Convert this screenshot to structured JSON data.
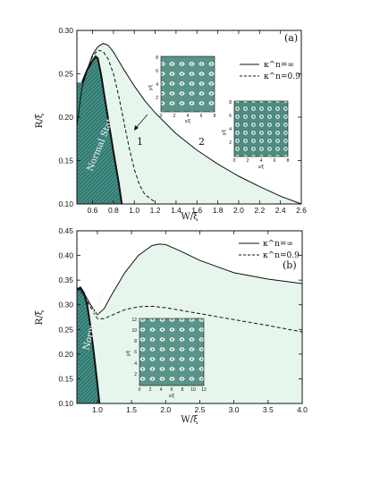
{
  "colors": {
    "region_fill": "#e6f6ec",
    "normal_fill": "#2f7a72",
    "inset_bg": "#4f8b80",
    "inset_light": "#d7ece6",
    "axis": "#111111"
  },
  "chart_data": [
    {
      "id": "a",
      "type": "line",
      "panel_label": "(a)",
      "xlabel": "W/ξ",
      "ylabel": "R/ξ",
      "xlim": [
        0.45,
        2.6
      ],
      "ylim": [
        0.1,
        0.3
      ],
      "x_ticks": [
        0.6,
        0.8,
        1.0,
        1.2,
        1.4,
        1.6,
        1.8,
        2.0,
        2.2,
        2.4,
        2.6
      ],
      "x_tick_labels": [
        "0.6",
        "0.8",
        "1.0",
        "1.2",
        "1.4",
        "1.6",
        "1.8",
        "2.0",
        "2.2",
        "2.4",
        "2.6"
      ],
      "y_ticks": [
        0.1,
        0.15,
        0.2,
        0.25,
        0.3
      ],
      "y_tick_labels": [
        "0.10",
        "0.15",
        "0.20",
        "0.25",
        "0.30"
      ],
      "legend_position": "top-right",
      "series": [
        {
          "name": "κ^n=∞",
          "style": "solid",
          "x": [
            0.45,
            0.5,
            0.55,
            0.6,
            0.65,
            0.7,
            0.75,
            0.8,
            0.85,
            0.9,
            1.0,
            1.1,
            1.2,
            1.4,
            1.6,
            1.8,
            2.0,
            2.2,
            2.4,
            2.6
          ],
          "y": [
            0.19,
            0.235,
            0.255,
            0.272,
            0.281,
            0.285,
            0.283,
            0.275,
            0.265,
            0.255,
            0.236,
            0.219,
            0.205,
            0.181,
            0.162,
            0.146,
            0.132,
            0.12,
            0.109,
            0.1
          ]
        },
        {
          "name": "κ^n=0.9",
          "style": "dashed",
          "x": [
            0.5,
            0.55,
            0.6,
            0.65,
            0.7,
            0.75,
            0.8,
            0.85,
            0.9,
            0.95,
            1.0,
            1.05,
            1.1,
            1.2
          ],
          "y": [
            0.235,
            0.255,
            0.27,
            0.277,
            0.276,
            0.267,
            0.25,
            0.225,
            0.195,
            0.165,
            0.14,
            0.122,
            0.111,
            0.102
          ]
        },
        {
          "name": "",
          "style": "solid-thick",
          "x": [
            0.5,
            0.55,
            0.6,
            0.63,
            0.65,
            0.68,
            0.72,
            0.76,
            0.8,
            0.85,
            0.88
          ],
          "y": [
            0.24,
            0.255,
            0.265,
            0.27,
            0.268,
            0.25,
            0.22,
            0.19,
            0.16,
            0.125,
            0.1
          ]
        }
      ],
      "region_labels": [
        "1",
        "2"
      ],
      "normal_label": "Normal State",
      "inset_1": {
        "xlabel": "x/ξ",
        "ylabel": "y/ξ",
        "ticks": [
          "0",
          "2",
          "4",
          "6",
          "8"
        ]
      },
      "inset_2": {
        "xlabel": "x/ξ",
        "ylabel": "y/ξ",
        "ticks": [
          "0",
          "2",
          "4",
          "6",
          "8"
        ]
      }
    },
    {
      "id": "b",
      "type": "line",
      "panel_label": "(b)",
      "xlabel": "W/ξ",
      "ylabel": "R/ξ",
      "xlim": [
        0.7,
        4.0
      ],
      "ylim": [
        0.1,
        0.45
      ],
      "x_ticks": [
        1.0,
        1.5,
        2.0,
        2.5,
        3.0,
        3.5,
        4.0
      ],
      "x_tick_labels": [
        "1.0",
        "1.5",
        "2.0",
        "2.5",
        "3.0",
        "3.5",
        "4.0"
      ],
      "y_ticks": [
        0.1,
        0.15,
        0.2,
        0.25,
        0.3,
        0.35,
        0.4,
        0.45
      ],
      "y_tick_labels": [
        "0.10",
        "0.15",
        "0.20",
        "0.25",
        "0.30",
        "0.35",
        "0.40",
        "0.45"
      ],
      "legend_position": "top-right",
      "series": [
        {
          "name": "κ^n=∞",
          "style": "solid",
          "x": [
            0.7,
            0.8,
            0.9,
            1.0,
            1.1,
            1.2,
            1.4,
            1.6,
            1.8,
            1.9,
            2.0,
            2.2,
            2.5,
            3.0,
            3.5,
            4.0
          ],
          "y": [
            0.335,
            0.325,
            0.3,
            0.28,
            0.292,
            0.318,
            0.365,
            0.4,
            0.42,
            0.423,
            0.422,
            0.41,
            0.39,
            0.365,
            0.352,
            0.343
          ]
        },
        {
          "name": "κ^n=0.9",
          "style": "dashed",
          "x": [
            0.7,
            0.8,
            0.9,
            1.0,
            1.1,
            1.2,
            1.4,
            1.6,
            1.8,
            2.0,
            2.5,
            3.0,
            3.5,
            4.0
          ],
          "y": [
            0.335,
            0.32,
            0.295,
            0.272,
            0.272,
            0.278,
            0.29,
            0.296,
            0.297,
            0.294,
            0.282,
            0.27,
            0.258,
            0.245
          ]
        },
        {
          "name": "",
          "style": "solid-thick",
          "x": [
            0.7,
            0.75,
            0.8,
            0.85,
            0.9,
            0.95,
            1.0,
            1.03
          ],
          "y": [
            0.33,
            0.335,
            0.325,
            0.3,
            0.255,
            0.2,
            0.14,
            0.1
          ]
        }
      ],
      "normal_label": "Normal State",
      "inset_3": {
        "xlabel": "x/ξ",
        "ylabel": "y/ξ",
        "ticks": [
          "0",
          "2",
          "4",
          "6",
          "8",
          "10",
          "12"
        ]
      }
    }
  ]
}
